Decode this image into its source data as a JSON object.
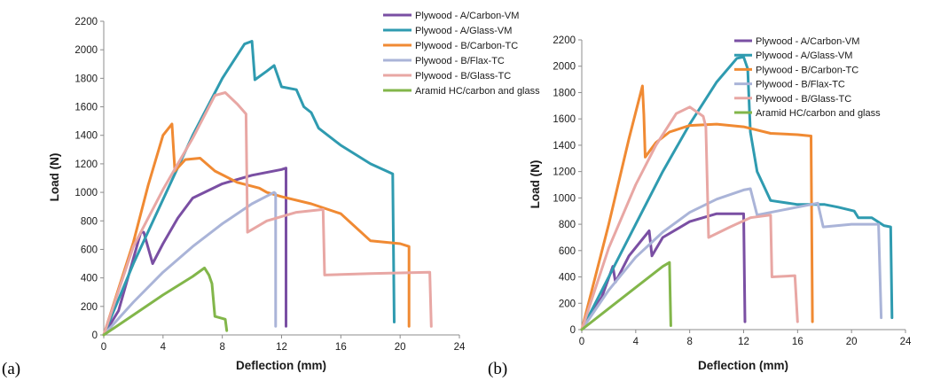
{
  "figure": {
    "panel_labels": [
      "(a)",
      "(b)"
    ]
  },
  "chart_data": [
    {
      "type": "line",
      "panel": "(a)",
      "xlabel": "Deflection (mm)",
      "ylabel": "Load (N)",
      "xlim": [
        0,
        24
      ],
      "ylim": [
        0,
        2200
      ],
      "xticks": [
        0,
        4,
        8,
        12,
        16,
        20,
        24
      ],
      "yticks": [
        0,
        200,
        400,
        600,
        800,
        1000,
        1200,
        1400,
        1600,
        1800,
        2000,
        2200
      ],
      "legend_position": "top-right",
      "series": [
        {
          "name": "Plywood - A/Carbon-VM",
          "color": "#7a4fa3",
          "points": [
            [
              0,
              0
            ],
            [
              1,
              170
            ],
            [
              2.5,
              720
            ],
            [
              2.7,
              720
            ],
            [
              3.3,
              500
            ],
            [
              4,
              640
            ],
            [
              5,
              820
            ],
            [
              6,
              960
            ],
            [
              8,
              1060
            ],
            [
              10,
              1120
            ],
            [
              12,
              1160
            ],
            [
              12.3,
              1170
            ],
            [
              12.3,
              60
            ]
          ]
        },
        {
          "name": "Plywood - A/Glass-VM",
          "color": "#2f9bb0",
          "points": [
            [
              0,
              0
            ],
            [
              2,
              500
            ],
            [
              4,
              950
            ],
            [
              6,
              1400
            ],
            [
              8,
              1800
            ],
            [
              9.5,
              2040
            ],
            [
              10,
              2060
            ],
            [
              10.2,
              1790
            ],
            [
              11,
              1850
            ],
            [
              11.5,
              1890
            ],
            [
              12,
              1740
            ],
            [
              13,
              1720
            ],
            [
              13.5,
              1600
            ],
            [
              14,
              1560
            ],
            [
              14.5,
              1450
            ],
            [
              16,
              1330
            ],
            [
              18,
              1200
            ],
            [
              19.5,
              1130
            ],
            [
              19.6,
              90
            ]
          ]
        },
        {
          "name": "Plywood - B/Carbon-TC",
          "color": "#f08a33",
          "points": [
            [
              0,
              0
            ],
            [
              2,
              650
            ],
            [
              3,
              1050
            ],
            [
              4,
              1400
            ],
            [
              4.6,
              1480
            ],
            [
              4.8,
              1150
            ],
            [
              5.5,
              1230
            ],
            [
              6.5,
              1240
            ],
            [
              7.5,
              1150
            ],
            [
              9,
              1070
            ],
            [
              10.5,
              1030
            ],
            [
              11,
              1000
            ],
            [
              12,
              970
            ],
            [
              14,
              920
            ],
            [
              16,
              850
            ],
            [
              18,
              660
            ],
            [
              20,
              640
            ],
            [
              20.6,
              620
            ],
            [
              20.6,
              60
            ]
          ]
        },
        {
          "name": "Plywood - B/Flax-TC",
          "color": "#aab4d8",
          "points": [
            [
              0,
              0
            ],
            [
              2,
              230
            ],
            [
              4,
              440
            ],
            [
              6,
              620
            ],
            [
              8,
              780
            ],
            [
              10,
              920
            ],
            [
              11.5,
              1000
            ],
            [
              11.6,
              990
            ],
            [
              11.6,
              60
            ]
          ]
        },
        {
          "name": "Plywood - B/Glass-TC",
          "color": "#e8a7a4",
          "points": [
            [
              0,
              0
            ],
            [
              2,
              620
            ],
            [
              4,
              1020
            ],
            [
              6,
              1380
            ],
            [
              7.5,
              1680
            ],
            [
              8.2,
              1700
            ],
            [
              9,
              1620
            ],
            [
              9.6,
              1550
            ],
            [
              9.7,
              720
            ],
            [
              11,
              800
            ],
            [
              13,
              860
            ],
            [
              14.8,
              880
            ],
            [
              14.9,
              420
            ],
            [
              18,
              430
            ],
            [
              22,
              440
            ],
            [
              22.1,
              60
            ]
          ]
        },
        {
          "name": "Aramid HC/carbon and glass",
          "color": "#82b64a",
          "points": [
            [
              0,
              0
            ],
            [
              2,
              140
            ],
            [
              4,
              280
            ],
            [
              6,
              410
            ],
            [
              6.8,
              470
            ],
            [
              7.1,
              420
            ],
            [
              7.3,
              360
            ],
            [
              7.5,
              130
            ],
            [
              8.2,
              110
            ],
            [
              8.3,
              30
            ]
          ]
        }
      ]
    },
    {
      "type": "line",
      "panel": "(b)",
      "xlabel": "Deflection (mm)",
      "ylabel": "Load (N)",
      "xlim": [
        0,
        24
      ],
      "ylim": [
        0,
        2200
      ],
      "xticks": [
        0,
        4,
        8,
        12,
        16,
        20,
        24
      ],
      "yticks": [
        0,
        200,
        400,
        600,
        800,
        1000,
        1200,
        1400,
        1600,
        1800,
        2000,
        2200
      ],
      "legend_position": "top-right",
      "series": [
        {
          "name": "Plywood - A/Carbon-VM",
          "color": "#7a4fa3",
          "points": [
            [
              0,
              0
            ],
            [
              1.5,
              250
            ],
            [
              2.3,
              480
            ],
            [
              2.5,
              360
            ],
            [
              3.5,
              560
            ],
            [
              5,
              750
            ],
            [
              5.2,
              560
            ],
            [
              6,
              700
            ],
            [
              8,
              820
            ],
            [
              10,
              880
            ],
            [
              11,
              880
            ],
            [
              12,
              880
            ],
            [
              12.1,
              60
            ]
          ]
        },
        {
          "name": "Plywood - A/Glass-VM",
          "color": "#2f9bb0",
          "points": [
            [
              0,
              0
            ],
            [
              2,
              400
            ],
            [
              4,
              800
            ],
            [
              6,
              1200
            ],
            [
              8,
              1560
            ],
            [
              10,
              1880
            ],
            [
              11.5,
              2060
            ],
            [
              12,
              2070
            ],
            [
              12.3,
              1980
            ],
            [
              12.5,
              1500
            ],
            [
              13,
              1200
            ],
            [
              14,
              980
            ],
            [
              16,
              950
            ],
            [
              18,
              950
            ],
            [
              19,
              930
            ],
            [
              20.2,
              900
            ],
            [
              20.5,
              850
            ],
            [
              21.5,
              850
            ],
            [
              22.4,
              790
            ],
            [
              22.9,
              780
            ],
            [
              23,
              90
            ]
          ]
        },
        {
          "name": "Plywood - B/Carbon-TC",
          "color": "#f08a33",
          "points": [
            [
              0,
              0
            ],
            [
              2,
              800
            ],
            [
              3.5,
              1450
            ],
            [
              4.5,
              1850
            ],
            [
              4.6,
              1630
            ],
            [
              4.7,
              1310
            ],
            [
              5.5,
              1420
            ],
            [
              6.5,
              1500
            ],
            [
              8,
              1550
            ],
            [
              10,
              1560
            ],
            [
              12,
              1540
            ],
            [
              14,
              1490
            ],
            [
              16,
              1480
            ],
            [
              17,
              1470
            ],
            [
              17.1,
              60
            ]
          ]
        },
        {
          "name": "Plywood - B/Flax-TC",
          "color": "#aab4d8",
          "points": [
            [
              0,
              0
            ],
            [
              2,
              300
            ],
            [
              4,
              550
            ],
            [
              6,
              740
            ],
            [
              8,
              890
            ],
            [
              10,
              990
            ],
            [
              12,
              1060
            ],
            [
              12.5,
              1070
            ],
            [
              13,
              870
            ],
            [
              15,
              910
            ],
            [
              17.5,
              960
            ],
            [
              17.9,
              780
            ],
            [
              20,
              800
            ],
            [
              22,
              800
            ],
            [
              22.2,
              90
            ]
          ]
        },
        {
          "name": "Plywood - B/Glass-TC",
          "color": "#e8a7a4",
          "points": [
            [
              0,
              0
            ],
            [
              2,
              620
            ],
            [
              4,
              1100
            ],
            [
              5.5,
              1400
            ],
            [
              7,
              1640
            ],
            [
              8,
              1690
            ],
            [
              9,
              1620
            ],
            [
              9.2,
              1540
            ],
            [
              9.4,
              700
            ],
            [
              11,
              780
            ],
            [
              12.5,
              850
            ],
            [
              14,
              870
            ],
            [
              14.1,
              400
            ],
            [
              15.8,
              410
            ],
            [
              16,
              60
            ]
          ]
        },
        {
          "name": "Aramid HC/carbon and glass",
          "color": "#82b64a",
          "points": [
            [
              0,
              0
            ],
            [
              2,
              160
            ],
            [
              4,
              320
            ],
            [
              6,
              480
            ],
            [
              6.5,
              510
            ],
            [
              6.6,
              30
            ]
          ]
        }
      ]
    }
  ]
}
